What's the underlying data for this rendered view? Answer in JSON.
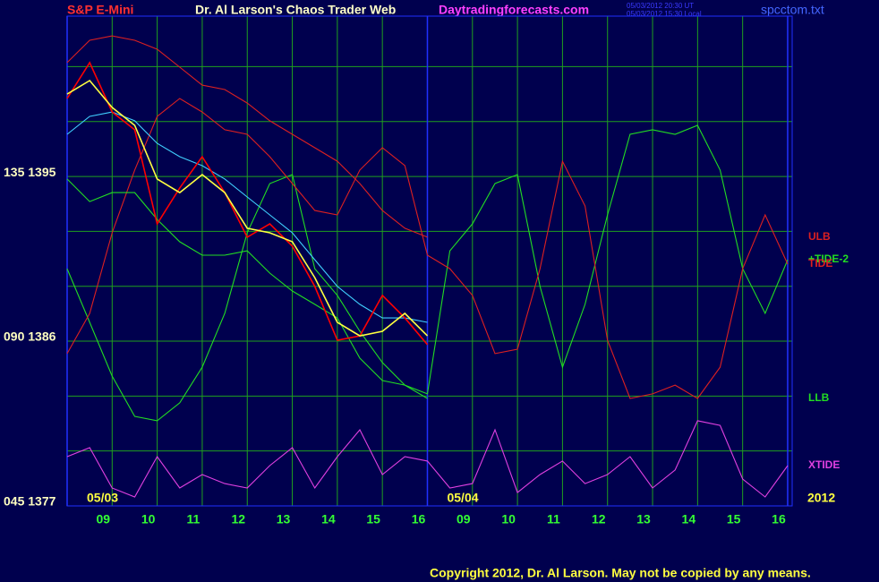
{
  "chart_data": {
    "type": "line",
    "title": "S&P E-Mini",
    "subtitle": "Dr. Al Larson's Chaos Trader Web",
    "website": "Daytradingforecasts.com",
    "timestamps": [
      "05/03/2012 20:30 UT",
      "05/03/2012 15:30 Local"
    ],
    "filename": "spcctom.txt",
    "copyright": "Copyright 2012, Dr. Al Larson. May not be copied by any means.",
    "grid": true,
    "xlim": [
      0,
      16.1
    ],
    "ylim": [
      1377,
      1403.76
    ],
    "xticks": [
      {
        "value": 1,
        "label": "09"
      },
      {
        "value": 2,
        "label": "10"
      },
      {
        "value": 3,
        "label": "11"
      },
      {
        "value": 4,
        "label": "12"
      },
      {
        "value": 5,
        "label": "13"
      },
      {
        "value": 6,
        "label": "14"
      },
      {
        "value": 7,
        "label": "15"
      },
      {
        "value": 8,
        "label": "16"
      },
      {
        "value": 9,
        "label": "09"
      },
      {
        "value": 10,
        "label": "10"
      },
      {
        "value": 11,
        "label": "11"
      },
      {
        "value": 12,
        "label": "12"
      },
      {
        "value": 13,
        "label": "13"
      },
      {
        "value": 14,
        "label": "14"
      },
      {
        "value": 15,
        "label": "15"
      },
      {
        "value": 16,
        "label": "16"
      }
    ],
    "yticks": [
      {
        "value": 1377,
        "label": "045 1377"
      },
      {
        "value": 1386,
        "label": "090 1386"
      },
      {
        "value": 1395,
        "label": "135 1395"
      }
    ],
    "ygrid": [
      1380,
      1383,
      1389,
      1392,
      1398,
      1401
    ],
    "date_labels": [
      {
        "text": "05/03",
        "x": 0
      },
      {
        "text": "05/04",
        "x": 8
      },
      {
        "text": "2012",
        "x": 16
      }
    ],
    "x": [
      0,
      0.5,
      1,
      1.5,
      2,
      2.5,
      3,
      3.5,
      4,
      4.5,
      5,
      5.5,
      6,
      6.5,
      7,
      7.5,
      8,
      8.5,
      9,
      9.5,
      10,
      10.5,
      11,
      11.5,
      12,
      12.5,
      13,
      13.5,
      14,
      14.5,
      15,
      15.5,
      16
    ],
    "series": [
      {
        "name": "XTIDE",
        "color": "#e040e0",
        "values": [
          1379.69,
          1380.18,
          1377.98,
          1377.49,
          1379.69,
          1377.98,
          1378.71,
          1378.22,
          1377.98,
          1379.2,
          1380.18,
          1377.98,
          1379.69,
          1381.16,
          1378.71,
          1379.69,
          1379.45,
          1377.98,
          1378.22,
          1381.16,
          1377.73,
          1378.71,
          1379.45,
          1378.22,
          1378.71,
          1379.69,
          1377.98,
          1378.96,
          1381.65,
          1381.4,
          1378.47,
          1377.49,
          1379.2
        ]
      },
      {
        "name": "+TIDE-2",
        "color": "#22dd22",
        "values": [
          1389.96,
          1387.03,
          1384.09,
          1381.89,
          1381.65,
          1382.63,
          1384.58,
          1387.52,
          1391.92,
          1394.61,
          1395.1,
          1389.96,
          1388.5,
          1386.54,
          1384.83,
          1383.6,
          1383.12,
          1390.94,
          1392.41,
          1394.61,
          1395.1,
          1388.99,
          1384.58,
          1388.01,
          1392.9,
          1397.3,
          1397.55,
          1397.3,
          1397.79,
          1395.35,
          1389.96,
          1387.52,
          1390.45
        ]
      },
      {
        "name": "TIDE",
        "color": "#dd2020",
        "values": [
          1385.32,
          1387.52,
          1391.92,
          1395.35,
          1398.28,
          1399.26,
          1398.52,
          1397.55,
          1397.3,
          1396.08,
          1394.61,
          1393.14,
          1392.9,
          1395.35,
          1396.57,
          1395.59,
          1390.7,
          1389.96,
          1388.5,
          1385.32,
          1385.56,
          1389.96,
          1395.83,
          1393.39,
          1386.05,
          1382.87,
          1383.12,
          1383.6,
          1382.87,
          1384.58,
          1389.96,
          1392.9,
          1390.21
        ]
      },
      {
        "name": "ULB",
        "color": "#dd2020",
        "values": [
          1401.22,
          1402.44,
          1402.68,
          1402.44,
          1401.95,
          1400.97,
          1399.99,
          1399.75,
          1399.01,
          1398.04,
          1397.3,
          1396.57,
          1395.83,
          1394.61,
          1393.14,
          1392.17,
          1391.68,
          null,
          null,
          null,
          null,
          null,
          null,
          null,
          null,
          null,
          null,
          null,
          null,
          null,
          null,
          null,
          null
        ]
      },
      {
        "name": "LLB",
        "color": "#22dd22",
        "values": [
          1394.86,
          1393.63,
          1394.12,
          1394.12,
          1392.65,
          1391.43,
          1390.7,
          1390.7,
          1390.94,
          1389.72,
          1388.74,
          1388.01,
          1387.27,
          1385.07,
          1383.85,
          1383.6,
          1382.87,
          null,
          null,
          null,
          null,
          null,
          null,
          null,
          null,
          null,
          null,
          null,
          null,
          null,
          null,
          null,
          null
        ]
      },
      {
        "color": "#40d0ff",
        "values": [
          1397.3,
          1398.28,
          1398.52,
          1398.04,
          1396.81,
          1396.08,
          1395.59,
          1394.86,
          1393.88,
          1392.9,
          1391.92,
          1390.45,
          1388.99,
          1388.01,
          1387.27,
          1387.27,
          1387.03,
          null,
          null,
          null,
          null,
          null,
          null,
          null,
          null,
          null,
          null,
          null,
          null,
          null,
          null,
          null,
          null
        ]
      },
      {
        "color": "#ff0000",
        "values": [
          1399.26,
          1401.22,
          1398.52,
          1397.55,
          1392.41,
          1394.37,
          1396.08,
          1394.12,
          1391.68,
          1392.41,
          1391.19,
          1388.99,
          1386.05,
          1386.29,
          1388.5,
          1387.27,
          1385.81,
          null,
          null,
          null,
          null,
          null,
          null,
          null,
          null,
          null,
          null,
          null,
          null,
          null,
          null,
          null,
          null
        ]
      },
      {
        "color": "#ffff40",
        "values": [
          1399.5,
          1400.24,
          1398.77,
          1397.79,
          1394.86,
          1394.12,
          1395.1,
          1394.12,
          1392.17,
          1391.92,
          1391.43,
          1389.47,
          1387.03,
          1386.29,
          1386.54,
          1387.52,
          1386.29,
          null,
          null,
          null,
          null,
          null,
          null,
          null,
          null,
          null,
          null,
          null,
          null,
          null,
          null,
          null,
          null
        ]
      }
    ]
  }
}
